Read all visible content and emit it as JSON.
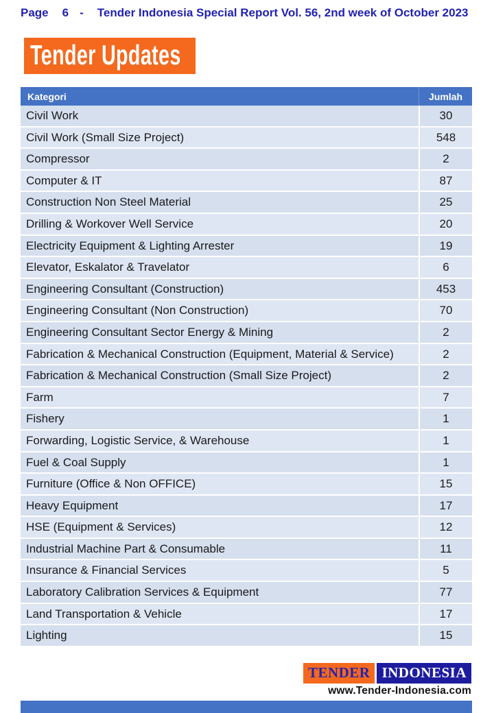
{
  "header": {
    "page_label": "Page",
    "page_number": "6",
    "separator": "-",
    "title": "Tender Indonesia Special Report Vol. 56, 2nd week of October 2023"
  },
  "banner": {
    "text": "Tender Updates"
  },
  "table": {
    "columns": {
      "category": "Kategori",
      "count": "Jumlah"
    },
    "rows": [
      {
        "category": "Civil Work",
        "count": 30
      },
      {
        "category": "Civil Work (Small Size Project)",
        "count": 548
      },
      {
        "category": "Compressor",
        "count": 2
      },
      {
        "category": "Computer & IT",
        "count": 87
      },
      {
        "category": "Construction Non Steel Material",
        "count": 25
      },
      {
        "category": "Drilling & Workover Well Service",
        "count": 20
      },
      {
        "category": "Electricity Equipment & Lighting Arrester",
        "count": 19
      },
      {
        "category": "Elevator, Eskalator & Travelator",
        "count": 6
      },
      {
        "category": "Engineering Consultant (Construction)",
        "count": 453
      },
      {
        "category": "Engineering Consultant (Non Construction)",
        "count": 70
      },
      {
        "category": "Engineering Consultant Sector Energy & Mining",
        "count": 2
      },
      {
        "category": "Fabrication & Mechanical Construction (Equipment, Material & Service)",
        "count": 2
      },
      {
        "category": "Fabrication & Mechanical Construction (Small Size Project)",
        "count": 2
      },
      {
        "category": "Farm",
        "count": 7
      },
      {
        "category": "Fishery",
        "count": 1
      },
      {
        "category": "Forwarding, Logistic Service, & Warehouse",
        "count": 1
      },
      {
        "category": "Fuel & Coal Supply",
        "count": 1
      },
      {
        "category": "Furniture (Office & Non OFFICE)",
        "count": 15
      },
      {
        "category": "Heavy Equipment",
        "count": 17
      },
      {
        "category": "HSE (Equipment & Services)",
        "count": 12
      },
      {
        "category": "Industrial Machine Part & Consumable",
        "count": 11
      },
      {
        "category": "Insurance & Financial Services",
        "count": 5
      },
      {
        "category": "Laboratory Calibration Services & Equipment",
        "count": 77
      },
      {
        "category": "Land Transportation & Vehicle",
        "count": 17
      },
      {
        "category": "Lighting",
        "count": 15
      }
    ]
  },
  "footer": {
    "logo_part1": "TENDER",
    "logo_part2": "INDONESIA",
    "website": "www.Tender-Indonesia.com"
  },
  "colors": {
    "accent_orange": "#f4691e",
    "table_header_blue": "#4472c4",
    "navy_text": "#2222b0",
    "row_light": "#dfe6f3",
    "row_dark": "#d5dfee",
    "logo_blue": "#1d1c9f"
  }
}
